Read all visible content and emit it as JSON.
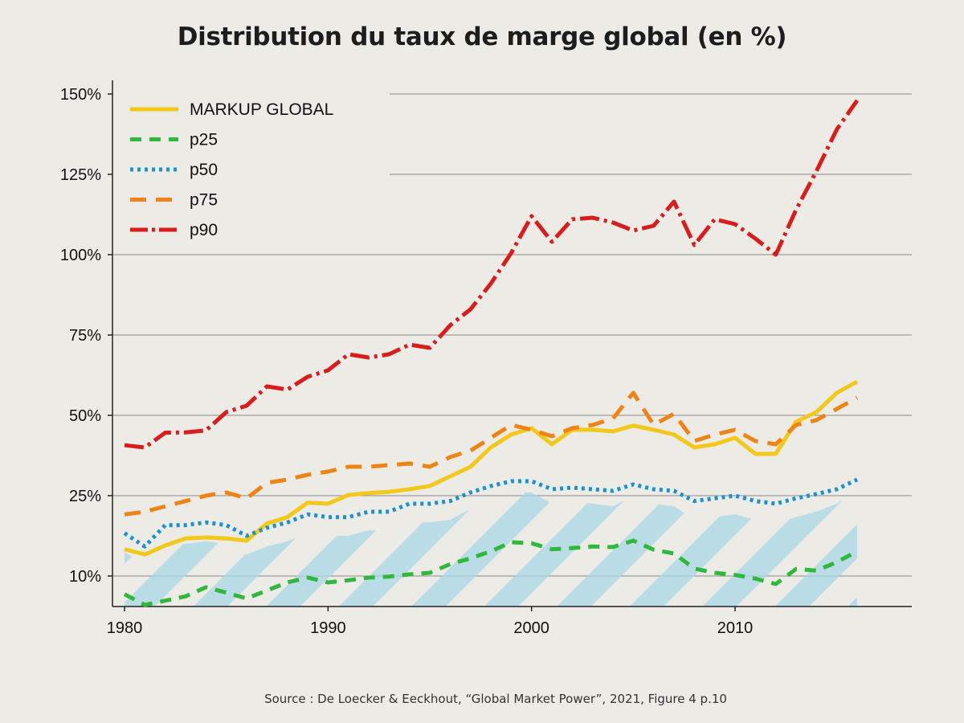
{
  "title": "Distribution du taux de marge global (en %)",
  "source": "Source : De Loecker & Eeckhout, “Global Market Power”, 2021, Figure 4 p.10",
  "chart_data": {
    "type": "line",
    "title": "Distribution du taux de marge global (en %)",
    "xlabel": "",
    "ylabel": "",
    "xlim": [
      1980,
      2019
    ],
    "y_ticks": [
      10,
      25,
      50,
      75,
      100,
      125,
      150
    ],
    "y_tick_labels": [
      "10%",
      "25%",
      "50%",
      "75%",
      "100%",
      "125%",
      "150%"
    ],
    "x_ticks": [
      1980,
      1990,
      2000,
      2010
    ],
    "x_tick_labels": [
      "1980",
      "1990",
      "2000",
      "2010"
    ],
    "grid": "horizontal",
    "legend_position": "top-left",
    "x": [
      1980,
      1981,
      1982,
      1983,
      1984,
      1985,
      1986,
      1987,
      1988,
      1989,
      1990,
      1991,
      1992,
      1993,
      1994,
      1995,
      1996,
      1997,
      1998,
      1999,
      2000,
      2001,
      2002,
      2003,
      2004,
      2005,
      2006,
      2007,
      2008,
      2009,
      2010,
      2011,
      2012,
      2013,
      2014,
      2015,
      2016
    ],
    "series": [
      {
        "name": "MARKUP GLOBAL",
        "style": "solid",
        "color": "#f2c81a",
        "values": [
          15,
          14,
          15.7,
          17,
          17.2,
          17,
          16.6,
          19.8,
          21,
          23.7,
          23.5,
          25.2,
          25.8,
          26.2,
          27,
          28,
          31,
          34,
          40,
          44,
          46,
          41,
          45.5,
          45.5,
          45,
          46.8,
          45.5,
          44,
          40,
          41,
          43,
          38,
          38,
          48,
          51,
          57,
          60.5
        ]
      },
      {
        "name": "p25",
        "style": "dashed",
        "color": "#2fb83c",
        "values": [
          6.6,
          4.6,
          5.4,
          6.2,
          7.9,
          6.9,
          5.8,
          7.3,
          8.8,
          9.7,
          8.8,
          9.2,
          9.7,
          9.9,
          10.3,
          10.6,
          12.2,
          13.3,
          14.6,
          16.3,
          16.1,
          15,
          15.2,
          15.5,
          15.4,
          16.6,
          14.9,
          14.2,
          11.4,
          10.6,
          10.2,
          9.5,
          8.5,
          11.3,
          11,
          12.6,
          14.6
        ]
      },
      {
        "name": "p50",
        "style": "dotted",
        "color": "#1b92cd",
        "values": [
          18,
          15.5,
          19.5,
          19.5,
          20,
          19.5,
          17.5,
          19,
          20,
          21.5,
          21,
          21,
          22,
          22,
          23.5,
          23.5,
          24,
          26,
          28,
          29.5,
          29.5,
          27,
          27.5,
          27,
          26.5,
          28.5,
          27,
          26.5,
          24,
          24.5,
          25,
          24,
          23.5,
          24.5,
          25.5,
          27,
          30
        ]
      },
      {
        "name": "p75",
        "style": "longdash",
        "color": "#ef8416",
        "values": [
          21.5,
          22,
          23,
          24,
          25,
          26,
          24.5,
          29,
          30,
          31.5,
          32.5,
          34,
          34,
          34.5,
          35,
          34,
          37,
          39,
          43,
          47,
          45.5,
          43.5,
          46,
          47,
          49,
          57,
          47,
          50.5,
          42,
          44,
          45.5,
          42,
          41,
          47,
          48.5,
          52,
          55.5
        ]
      },
      {
        "name": "p90",
        "style": "dashdot",
        "color": "#d91d1d",
        "values": [
          40.7,
          40,
          44.6,
          44.7,
          45.3,
          51,
          53,
          59,
          58,
          62,
          64,
          69,
          68,
          69,
          72,
          71,
          78,
          83,
          91,
          100.5,
          112,
          104,
          111,
          111.5,
          110,
          107.5,
          109,
          116.5,
          103,
          111,
          109.5,
          105,
          100,
          114,
          126,
          139,
          148
        ]
      }
    ]
  }
}
